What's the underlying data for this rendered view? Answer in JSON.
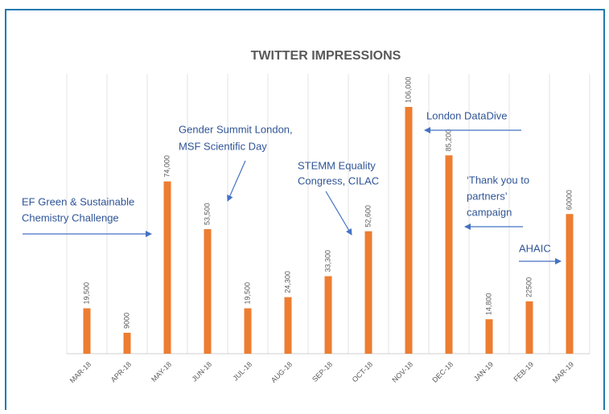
{
  "chart_data": {
    "type": "bar",
    "title": "TWITTER IMPRESSIONS",
    "categories": [
      "MAR-18",
      "APR-18",
      "MAY-18",
      "JUN-18",
      "JUL-18",
      "AUG-18",
      "SEP-18",
      "OCT-18",
      "NOV-18",
      "DEC-18",
      "JAN-19",
      "FEB-19",
      "MAR-19"
    ],
    "values": [
      19500,
      9000,
      74000,
      53500,
      19500,
      24300,
      33300,
      52600,
      106000,
      85200,
      14800,
      22500,
      60000
    ],
    "value_labels": [
      "19,500",
      "9000",
      "74,000",
      "53,500",
      "19,500",
      "24,300",
      "33,300",
      "52,600",
      "106,000",
      "85,200",
      "14,800",
      "22500",
      "60000"
    ],
    "color": "#ed7d31",
    "annotations": [
      {
        "lines": [
          "EF Green & Sustainable",
          "Chemistry Challenge"
        ]
      },
      {
        "lines": [
          "Gender Summit London,",
          "MSF Scientific Day"
        ]
      },
      {
        "lines": [
          "STEMM Equality",
          "Congress, CILAC"
        ]
      },
      {
        "lines": [
          "London DataDive"
        ]
      },
      {
        "lines": [
          "‘Thank you to",
          "partners’",
          "campaign"
        ]
      },
      {
        "lines": [
          "AHAIC"
        ]
      }
    ]
  }
}
